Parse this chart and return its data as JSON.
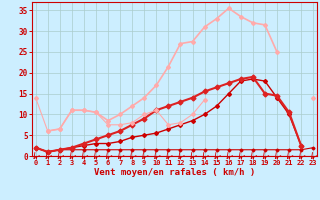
{
  "x": [
    0,
    1,
    2,
    3,
    4,
    5,
    6,
    7,
    8,
    9,
    10,
    11,
    12,
    13,
    14,
    15,
    16,
    17,
    18,
    19,
    20,
    21,
    22,
    23
  ],
  "series": [
    {
      "y": [
        2.0,
        1.0,
        1.5,
        1.5,
        1.5,
        1.5,
        1.5,
        1.5,
        1.5,
        1.5,
        1.5,
        1.5,
        1.5,
        1.5,
        1.5,
        1.5,
        1.5,
        1.5,
        1.5,
        1.5,
        1.5,
        1.5,
        1.5,
        2.0
      ],
      "color": "#cc0000",
      "lw": 0.8,
      "marker": "D",
      "ms": 1.5
    },
    {
      "y": [
        2.0,
        1.0,
        1.5,
        2.0,
        2.5,
        3.0,
        3.0,
        3.5,
        4.5,
        5.0,
        5.5,
        6.5,
        7.5,
        8.5,
        10.0,
        12.0,
        15.0,
        18.0,
        18.5,
        18.0,
        14.0,
        10.0,
        2.5,
        null
      ],
      "color": "#cc0000",
      "lw": 1.0,
      "marker": "D",
      "ms": 2.0
    },
    {
      "y": [
        2.0,
        1.0,
        1.5,
        2.0,
        3.0,
        4.0,
        5.0,
        6.0,
        7.5,
        9.0,
        11.0,
        12.0,
        13.0,
        14.0,
        15.5,
        16.5,
        17.5,
        18.5,
        19.0,
        15.0,
        14.5,
        10.5,
        2.5,
        null
      ],
      "color": "#dd2222",
      "lw": 1.5,
      "marker": "D",
      "ms": 2.5
    },
    {
      "y": [
        14.0,
        6.0,
        6.5,
        11.0,
        11.0,
        10.5,
        7.5,
        7.5,
        8.0,
        10.0,
        11.0,
        7.5,
        8.0,
        10.0,
        13.5,
        null,
        null,
        null,
        null,
        null,
        null,
        null,
        null,
        null
      ],
      "color": "#ffaaaa",
      "lw": 0.8,
      "marker": "D",
      "ms": 2.0
    },
    {
      "y": [
        null,
        null,
        null,
        null,
        null,
        null,
        null,
        null,
        null,
        null,
        null,
        null,
        null,
        null,
        null,
        null,
        null,
        null,
        null,
        null,
        null,
        null,
        null,
        14.0
      ],
      "color": "#ffaaaa",
      "lw": 0.8,
      "marker": "D",
      "ms": 2.0
    },
    {
      "y": [
        null,
        6.0,
        6.5,
        11.0,
        11.0,
        10.5,
        8.5,
        10.0,
        12.0,
        14.0,
        17.0,
        21.5,
        27.0,
        27.5,
        31.0,
        33.0,
        35.5,
        33.5,
        32.0,
        31.5,
        25.0,
        null,
        null,
        null
      ],
      "color": "#ffaaaa",
      "lw": 1.2,
      "marker": "D",
      "ms": 2.0
    }
  ],
  "xlim": [
    -0.3,
    23.3
  ],
  "ylim": [
    0,
    37
  ],
  "xticks": [
    0,
    1,
    2,
    3,
    4,
    5,
    6,
    7,
    8,
    9,
    10,
    11,
    12,
    13,
    14,
    15,
    16,
    17,
    18,
    19,
    20,
    21,
    22,
    23
  ],
  "yticks": [
    0,
    5,
    10,
    15,
    20,
    25,
    30,
    35
  ],
  "xlabel": "Vent moyen/en rafales ( km/h )",
  "bg_color": "#cceeff",
  "grid_color": "#aacccc",
  "axis_color": "#cc0000",
  "label_color": "#cc0000",
  "tick_color": "#cc0000",
  "tick_fontsize": 5.0,
  "xlabel_fontsize": 6.5
}
